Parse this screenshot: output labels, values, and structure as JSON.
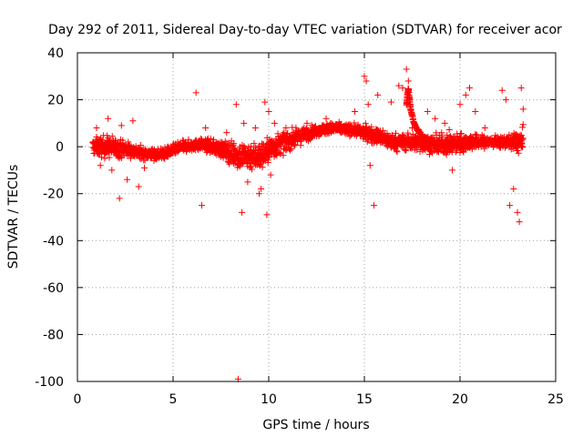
{
  "chart_data": {
    "type": "scatter",
    "title": "Day 292 of 2011, Sidereal Day-to-day VTEC variation (SDTVAR) for receiver acor",
    "xlabel": "GPS time / hours",
    "ylabel": "SDTVAR / TECUs",
    "xlim": [
      0,
      25
    ],
    "ylim": [
      -100,
      40
    ],
    "xticks": [
      0,
      5,
      10,
      15,
      20,
      25
    ],
    "yticks": [
      -100,
      -80,
      -60,
      -40,
      -20,
      0,
      20,
      40
    ],
    "xtick_labels": [
      "0",
      "5",
      "10",
      "15",
      "20",
      "25"
    ],
    "ytick_labels": [
      "-100",
      "-80",
      "-60",
      "-40",
      "-20",
      "0",
      "20",
      "40"
    ],
    "grid": true,
    "legend": "none",
    "marker": "+",
    "color": "#ff0000",
    "series": [
      {
        "name": "SDTVAR",
        "trend": {
          "x": [
            0.8,
            1.5,
            2.5,
            3.5,
            4.5,
            5.5,
            6.5,
            7.5,
            8.5,
            9.5,
            10.5,
            11.5,
            12.5,
            13.5,
            14.5,
            15.5,
            16.5,
            17.5,
            18.5,
            19.5,
            20.5,
            21.5,
            22.5,
            23.3
          ],
          "y": [
            0,
            0,
            -1,
            -3,
            -3,
            0,
            1,
            -1,
            -4,
            -4,
            1,
            4,
            7,
            8,
            7,
            5,
            2,
            2,
            1,
            1,
            2,
            2,
            2,
            2
          ],
          "spread": [
            3,
            4,
            3,
            2,
            2,
            2,
            2,
            3,
            5,
            5,
            4,
            3,
            2,
            2,
            2,
            3,
            3,
            3,
            3,
            4,
            3,
            2,
            2,
            5
          ]
        },
        "outliers": {
          "x": [
            1.0,
            1.2,
            1.6,
            1.8,
            2.2,
            2.3,
            2.6,
            2.9,
            3.2,
            3.5,
            4.0,
            6.2,
            6.5,
            6.7,
            7.8,
            8.3,
            8.4,
            8.6,
            8.7,
            8.9,
            9.3,
            9.5,
            9.6,
            9.8,
            9.9,
            10.0,
            10.1,
            10.3,
            12.0,
            13.0,
            14.5,
            15.0,
            15.1,
            15.2,
            15.3,
            15.5,
            15.7,
            16.4,
            16.8,
            17.0,
            17.2,
            17.3,
            17.4,
            17.5,
            18.3,
            18.7,
            19.2,
            19.6,
            20.0,
            20.3,
            20.5,
            20.8,
            21.3,
            22.2,
            22.4,
            22.6,
            22.8,
            23.0,
            23.1,
            23.2,
            23.3
          ],
          "y": [
            8,
            -8,
            12,
            -10,
            -22,
            9,
            -14,
            11,
            -17,
            -9,
            -6,
            23,
            -25,
            8,
            6,
            18,
            -99,
            -28,
            10,
            -15,
            8,
            -20,
            -18,
            19,
            -29,
            15,
            -12,
            10,
            10,
            12,
            15,
            30,
            28,
            18,
            -8,
            -25,
            22,
            19,
            26,
            25,
            33,
            28,
            18,
            8,
            15,
            12,
            10,
            -10,
            18,
            22,
            25,
            15,
            8,
            24,
            20,
            -25,
            -18,
            -28,
            -32,
            25,
            16
          ]
        },
        "hairpin": {
          "x": [
            17.2,
            17.25,
            17.3,
            17.35,
            17.4,
            17.5,
            17.6,
            17.7,
            17.9,
            18.1,
            18.3,
            18.5,
            18.7
          ],
          "y": [
            18,
            22,
            25,
            21,
            17,
            13,
            10,
            8,
            6,
            4,
            3,
            2,
            2
          ]
        }
      }
    ]
  }
}
